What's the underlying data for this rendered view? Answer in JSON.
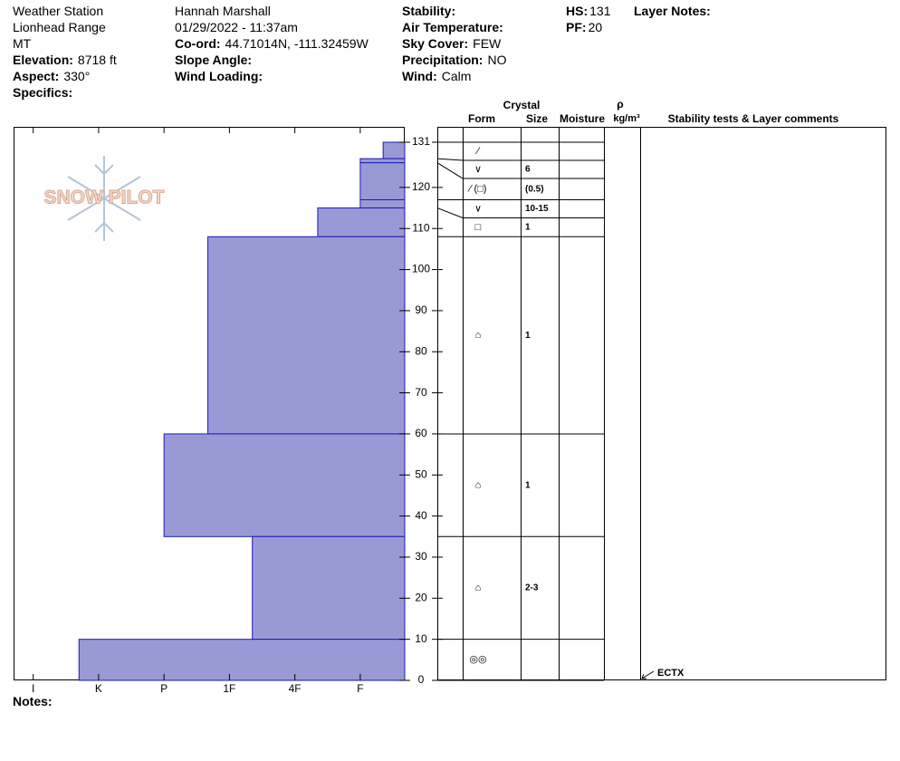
{
  "header": {
    "station": "Weather Station",
    "range": "Lionhead Range",
    "state": "MT",
    "elevation": {
      "label": "Elevation:",
      "value": "8718 ft"
    },
    "aspect": {
      "label": "Aspect:",
      "value": "330°"
    },
    "specifics": {
      "label": "Specifics:"
    },
    "observer": "Hannah Marshall",
    "datetime": "01/29/2022 - 11:37am",
    "coord": {
      "label": "Co-ord:",
      "value": "44.71014N, -111.32459W"
    },
    "slope_angle": {
      "label": "Slope Angle:"
    },
    "wind_loading": {
      "label": "Wind Loading:"
    },
    "stability": {
      "label": "Stability:"
    },
    "air_temperature": {
      "label": "Air Temperature:"
    },
    "sky_cover": {
      "label": "Sky Cover:",
      "value": "FEW"
    },
    "precipitation": {
      "label": "Precipitation:",
      "value": "NO"
    },
    "wind": {
      "label": "Wind:",
      "value": "Calm"
    },
    "hs": {
      "label": "HS:",
      "value": 131
    },
    "pf": {
      "label": "PF:",
      "value": 20
    },
    "layer_notes": {
      "label": "Layer Notes:"
    }
  },
  "logo": "SNOW PILOT",
  "table_headers": {
    "crystal": "Crystal",
    "form": "Form",
    "size": "Size",
    "moisture": "Moisture",
    "rho": "ρ",
    "density_unit": "kg/m³",
    "comments": "Stability tests & Layer comments"
  },
  "chart_data": {
    "type": "hardness-profile",
    "color": "#9999d6",
    "xlim": [
      6.3,
      0.32
    ],
    "xticks": [
      {
        "value": 6,
        "label": "I"
      },
      {
        "value": 5,
        "label": "K"
      },
      {
        "value": 4,
        "label": "P"
      },
      {
        "value": 3,
        "label": "1F"
      },
      {
        "value": 2,
        "label": "4F"
      },
      {
        "value": 1,
        "label": "F"
      }
    ],
    "ylim": [
      0,
      131
    ],
    "yticks": [
      0,
      10,
      20,
      30,
      40,
      50,
      60,
      70,
      80,
      90,
      100,
      110,
      120,
      131
    ],
    "layers": [
      {
        "top": 131,
        "bottom": 127,
        "hardness": 0.65,
        "form": "⁄",
        "size": null
      },
      {
        "top": 127,
        "bottom": 126,
        "hardness": 1,
        "form": "∨",
        "size": "6"
      },
      {
        "top": 126,
        "bottom": 117,
        "hardness": 1,
        "form": "⁄ (□)",
        "size": "(0.5)"
      },
      {
        "top": 117,
        "bottom": 115,
        "hardness": 1,
        "form": "∨",
        "size": "10-15"
      },
      {
        "top": 115,
        "bottom": 108,
        "hardness": 1.65,
        "form": "□",
        "size": "1"
      },
      {
        "top": 108,
        "bottom": 60,
        "hardness": 3.33,
        "form": "⌂",
        "size": "1"
      },
      {
        "top": 60,
        "bottom": 35,
        "hardness": 4,
        "form": "⌂",
        "size": "1"
      },
      {
        "top": 35,
        "bottom": 10,
        "hardness": 2.65,
        "form": "⌂",
        "size": "2-3"
      },
      {
        "top": 10,
        "bottom": 0,
        "hardness": 5.3,
        "form": "◎◎",
        "size": null
      }
    ],
    "tests": [
      {
        "name": "ECTX",
        "depth": 0
      }
    ]
  },
  "notes_label": "Notes:"
}
